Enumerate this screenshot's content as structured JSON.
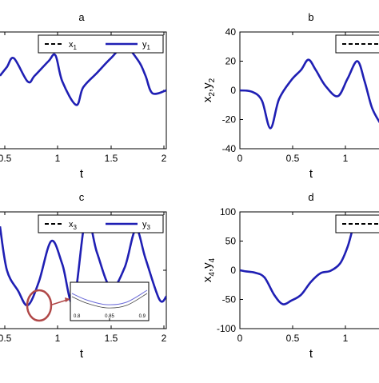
{
  "chart_data": [
    {
      "type": "line",
      "panel": "a",
      "xlabel": "t",
      "ylabel": "",
      "xlim": [
        0.8,
        2
      ],
      "ylim": [
        -40,
        40
      ],
      "xticks": [
        "0.5",
        "1",
        "1.5",
        "2"
      ],
      "yticks": [],
      "legend": "top-right",
      "grid": false,
      "series": [
        {
          "name": "x",
          "subscript": "1",
          "color": "#000000",
          "dash": true,
          "x": [
            0.8,
            0.85,
            0.9,
            1.0,
            1.05,
            1.15,
            1.2,
            1.25,
            1.35,
            1.4,
            1.5,
            1.6,
            1.7,
            1.8,
            1.85,
            1.9,
            2.0
          ],
          "y": [
            10,
            16,
            22,
            6,
            10,
            20,
            24,
            6,
            -10,
            2,
            12,
            22,
            30,
            20,
            10,
            -2,
            0
          ]
        },
        {
          "name": "y",
          "subscript": "1",
          "color": "#1f1fb4",
          "dash": false,
          "x": [
            0.8,
            0.85,
            0.9,
            1.0,
            1.05,
            1.15,
            1.2,
            1.25,
            1.35,
            1.4,
            1.5,
            1.6,
            1.7,
            1.8,
            1.85,
            1.9,
            2.0
          ],
          "y": [
            10,
            16,
            22,
            6,
            10,
            20,
            24,
            6,
            -10,
            2,
            12,
            22,
            30,
            20,
            10,
            -2,
            0
          ]
        }
      ]
    },
    {
      "type": "line",
      "panel": "b",
      "xlabel": "t",
      "ylabel": "x",
      "ylabel_parts": [
        "x",
        "2",
        ",y",
        "2"
      ],
      "xlim": [
        0,
        1.15
      ],
      "ylim": [
        -40,
        40
      ],
      "xticks": [
        "0",
        "0.5",
        "1"
      ],
      "yticks": [
        "40",
        "20",
        "0",
        "-20",
        "-40"
      ],
      "legend": "top-right",
      "grid": false,
      "series": [
        {
          "name": "",
          "color": "#000000",
          "dash": true,
          "x": [
            0,
            0.1,
            0.18,
            0.25,
            0.32,
            0.42,
            0.5,
            0.56,
            0.62,
            0.7,
            0.8,
            0.88,
            0.96,
            1.02,
            1.08,
            1.15
          ],
          "y": [
            0,
            -1,
            -7,
            -26,
            -6,
            7,
            14,
            21,
            14,
            3,
            -4,
            8,
            20,
            6,
            -12,
            -23
          ]
        },
        {
          "name": "",
          "color": "#1f1fb4",
          "dash": false,
          "x": [
            0,
            0.1,
            0.18,
            0.25,
            0.32,
            0.42,
            0.5,
            0.56,
            0.62,
            0.7,
            0.8,
            0.88,
            0.96,
            1.02,
            1.08,
            1.15
          ],
          "y": [
            0,
            -1,
            -7,
            -26,
            -6,
            7,
            14,
            21,
            14,
            3,
            -4,
            8,
            20,
            6,
            -12,
            -23
          ]
        }
      ]
    },
    {
      "type": "line",
      "panel": "c",
      "xlabel": "t",
      "ylabel": "",
      "xlim": [
        0.8,
        2
      ],
      "ylim": [
        -40,
        40
      ],
      "xticks": [
        "0.5",
        "1",
        "1.5",
        "2"
      ],
      "yticks": [],
      "legend": "top-right",
      "grid": false,
      "series": [
        {
          "name": "x",
          "subscript": "3",
          "color": "#000000",
          "dash": true,
          "x": [
            0.8,
            0.85,
            0.93,
            1.0,
            1.08,
            1.17,
            1.25,
            1.33,
            1.42,
            1.5,
            1.6,
            1.7,
            1.78,
            1.85,
            1.95,
            2.0
          ],
          "y": [
            30,
            0,
            -14,
            -24,
            -8,
            20,
            4,
            -22,
            36,
            12,
            -12,
            2,
            28,
            8,
            -20,
            -18
          ]
        },
        {
          "name": "y",
          "subscript": "3",
          "color": "#1f1fb4",
          "dash": false,
          "x": [
            0.8,
            0.85,
            0.93,
            1.0,
            1.08,
            1.17,
            1.25,
            1.33,
            1.42,
            1.5,
            1.6,
            1.7,
            1.78,
            1.85,
            1.95,
            2.0
          ],
          "y": [
            30,
            0,
            -14,
            -24,
            -8,
            20,
            4,
            -22,
            36,
            12,
            -12,
            2,
            28,
            8,
            -20,
            -18
          ]
        }
      ],
      "inset": {
        "xticks": [
          "0.8",
          "0.85",
          "0.9"
        ]
      }
    },
    {
      "type": "line",
      "panel": "d",
      "xlabel": "t",
      "ylabel": "x",
      "ylabel_parts": [
        "x",
        "4",
        ",y",
        "4"
      ],
      "xlim": [
        0,
        1.15
      ],
      "ylim": [
        -100,
        100
      ],
      "xticks": [
        "0",
        "0.5",
        "1"
      ],
      "yticks": [
        "100",
        "50",
        "0",
        "-50",
        "-100"
      ],
      "legend": "top-right",
      "grid": false,
      "series": [
        {
          "name": "",
          "color": "#000000",
          "dash": true,
          "x": [
            0,
            0.05,
            0.12,
            0.2,
            0.28,
            0.35,
            0.42,
            0.5,
            0.58,
            0.66,
            0.74,
            0.82,
            0.88,
            0.92
          ],
          "y": [
            0,
            -2,
            -4,
            -12,
            -42,
            -58,
            -52,
            -42,
            -20,
            -5,
            -1,
            12,
            40,
            70
          ]
        },
        {
          "name": "",
          "color": "#1f1fb4",
          "dash": false,
          "x": [
            0,
            0.05,
            0.12,
            0.2,
            0.28,
            0.35,
            0.42,
            0.5,
            0.58,
            0.66,
            0.74,
            0.82,
            0.88,
            0.92
          ],
          "y": [
            0,
            -2,
            -4,
            -12,
            -42,
            -58,
            -52,
            -42,
            -20,
            -5,
            -1,
            12,
            40,
            70
          ]
        }
      ]
    }
  ]
}
